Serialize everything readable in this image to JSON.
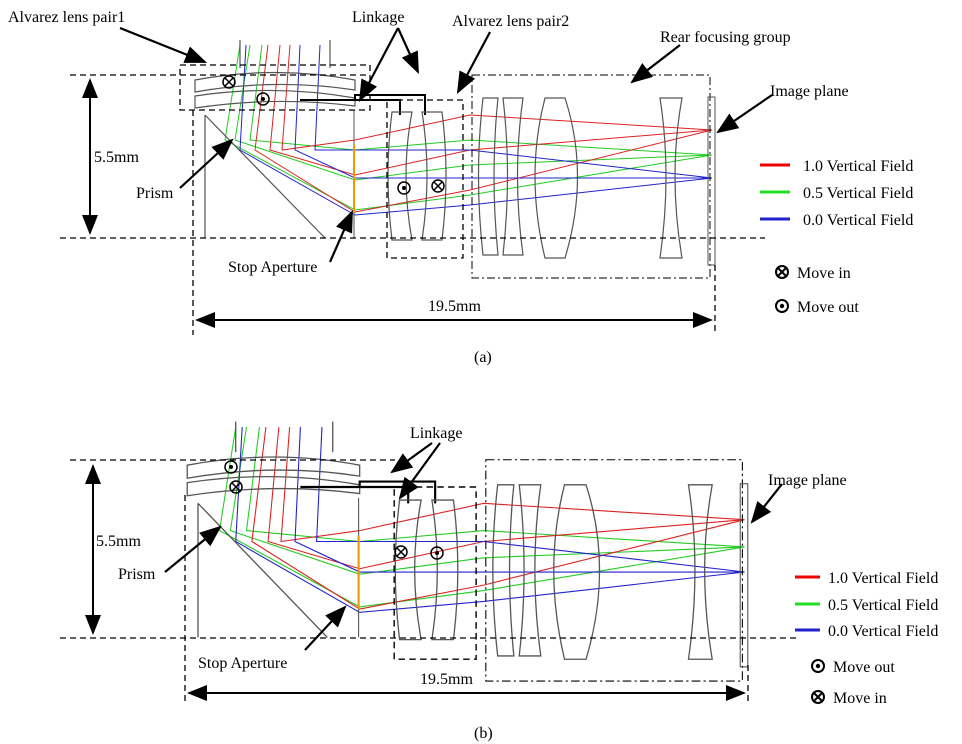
{
  "panels": [
    {
      "labels": {
        "lens_pair1": "Alvarez lens pair1",
        "linkage": "Linkage",
        "lens_pair2": "Alvarez lens pair2",
        "rear_group": "Rear focusing group",
        "image_plane": "Image plane",
        "height": "5.5mm",
        "prism": "Prism",
        "stop": "Stop Aperture",
        "length": "19.5mm"
      },
      "legend": [
        "1.0 Vertical Field",
        "0.5 Vertical Field",
        "0.0 Vertical Field"
      ],
      "moves": [
        "Move in",
        "Move out"
      ],
      "caption": "(a)"
    },
    {
      "labels": {
        "linkage": "Linkage",
        "image_plane": "Image plane",
        "height": "5.5mm",
        "prism": "Prism",
        "stop": "Stop Aperture",
        "length": "19.5mm"
      },
      "legend": [
        "1.0 Vertical Field",
        "0.5 Vertical Field",
        "0.0 Vertical Field"
      ],
      "moves": [
        "Move out",
        "Move in"
      ],
      "caption": "(b)"
    }
  ]
}
